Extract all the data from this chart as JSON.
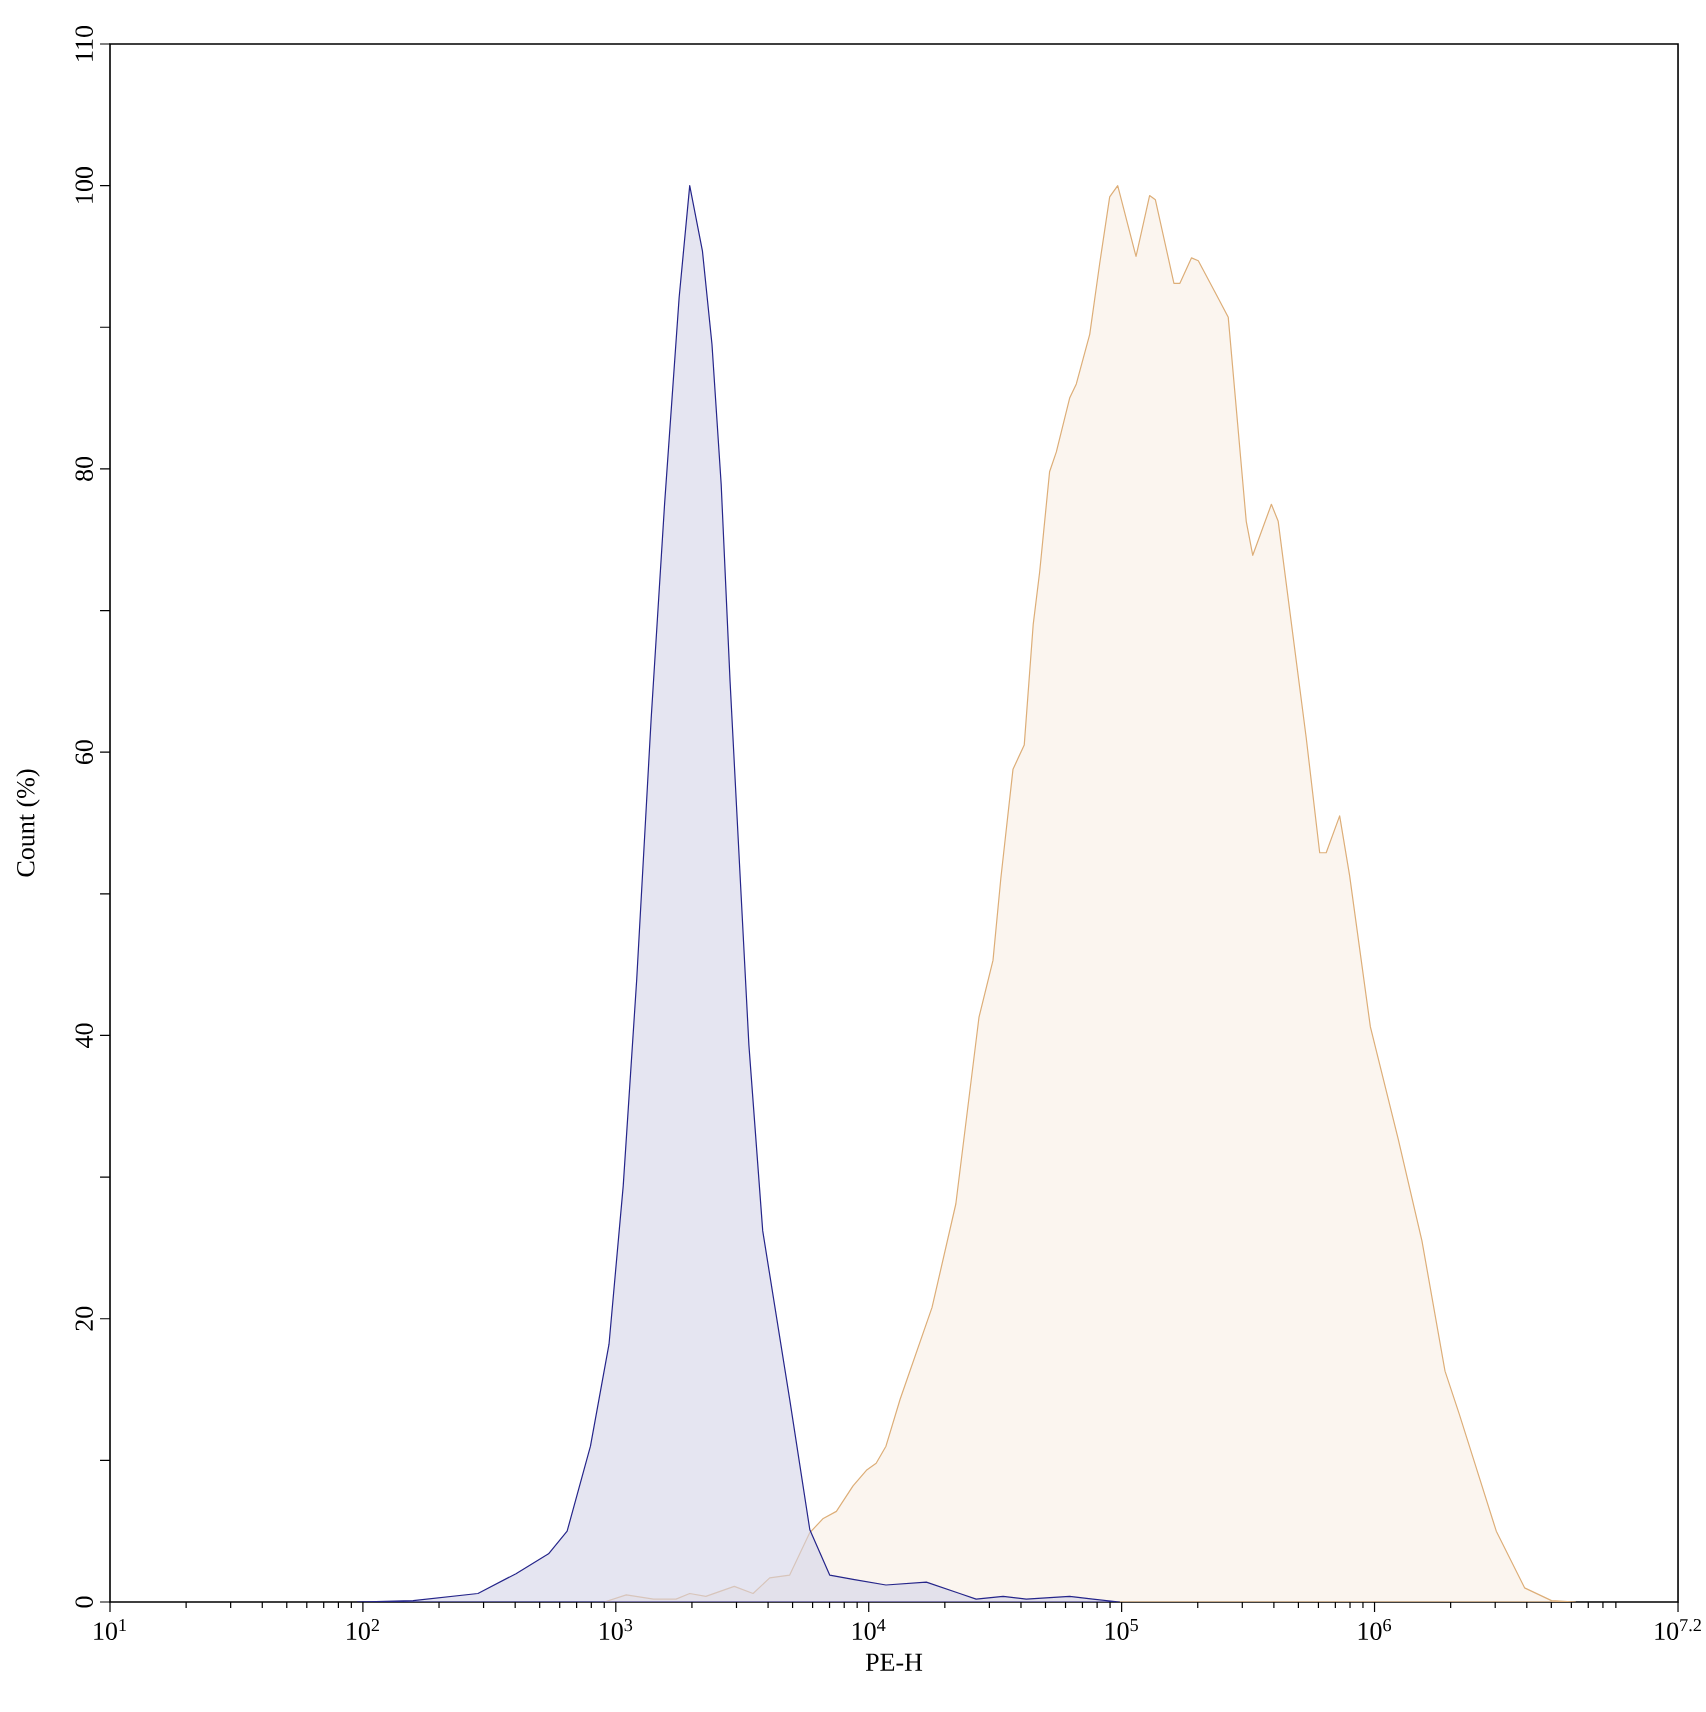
{
  "chart_data": {
    "type": "area",
    "xlabel": "PE-H",
    "ylabel": "Count (%)",
    "log": "x",
    "xlim": [
      10,
      15848932
    ],
    "xticks": [
      {
        "value": 10,
        "label": "10$^{1}$"
      },
      {
        "value": 100,
        "label": "10$^{2}$"
      },
      {
        "value": 1000,
        "label": "10$^{3}$"
      },
      {
        "value": 10000,
        "label": "10$^{4}$"
      },
      {
        "value": 100000,
        "label": "10$^{5}$"
      },
      {
        "value": 1000000,
        "label": "10$^{6}$"
      },
      {
        "value": 15848932,
        "label": "10$^{7.2}$"
      }
    ],
    "ylim": [
      0,
      110
    ],
    "yticks": [
      0,
      {
        "value": 10,
        "label": null
      },
      20,
      {
        "value": 30,
        "label": null
      },
      40,
      {
        "value": 50,
        "label": null
      },
      60,
      {
        "value": 70,
        "label": null
      },
      80,
      {
        "value": 90,
        "label": null
      },
      100,
      110
    ],
    "series": [
      {
        "color": "#ddae78",
        "x": [
          900,
          1100,
          1410,
          1730,
          1960,
          2270,
          2940,
          3490,
          4060,
          4870,
          5850,
          6610,
          7450,
          8670,
          9790,
          10700,
          11700,
          13300,
          17800,
          22100,
          27300,
          31000,
          33300,
          37200,
          41200,
          44700,
          47400,
          51900,
          55200,
          62300,
          66200,
          74800,
          81900,
          89700,
          96500,
          114000,
          129000,
          136000,
          161000,
          170000,
          189000,
          201000,
          237000,
          264000,
          311000,
          330000,
          391000,
          416000,
          537000,
          607000,
          644000,
          728000,
          797000,
          963000,
          1240000,
          1540000,
          1900000,
          2160000,
          3030000,
          3920000,
          5010000,
          6230000
        ],
        "values": [
          0,
          0.5,
          0.2,
          0.2,
          0.6,
          0.4,
          1.1,
          0.6,
          1.7,
          1.9,
          4.9,
          5.9,
          6.4,
          8.2,
          9.3,
          9.8,
          11,
          14.3,
          20.8,
          28.1,
          41.3,
          45.3,
          51.1,
          58.8,
          60.5,
          69,
          72.7,
          79.8,
          81.2,
          85,
          86,
          89.5,
          94.5,
          99.2,
          100,
          95,
          99.3,
          99,
          93.1,
          93.1,
          94.9,
          94.7,
          92.3,
          90.7,
          76.3,
          73.9,
          77.5,
          76.3,
          61,
          52.9,
          52.9,
          55.5,
          51.3,
          40.6,
          32.7,
          25.5,
          16.3,
          13.3,
          5,
          1,
          0.1,
          0
        ]
      },
      {
        "color": "#25258a",
        "x": [
          95,
          158,
          285,
          403,
          542,
          642,
          794,
          940,
          1070,
          1210,
          1380,
          1560,
          1780,
          1960,
          2200,
          2400,
          2610,
          2830,
          3090,
          3360,
          3810,
          4870,
          5850,
          7010,
          8670,
          11700,
          16900,
          22900,
          26600,
          34000,
          42000,
          62300,
          77000,
          98200
        ],
        "values": [
          0,
          0.1,
          0.6,
          2,
          3.4,
          5,
          11,
          18.2,
          29.4,
          44,
          62.4,
          77.6,
          92.1,
          100,
          95.4,
          88.8,
          78.9,
          65,
          51.8,
          39.3,
          26.2,
          14.3,
          5.1,
          1.9,
          1.6,
          1.2,
          1.4,
          0.6,
          0.2,
          0.4,
          0.2,
          0.4,
          0.2,
          0
        ]
      }
    ]
  }
}
